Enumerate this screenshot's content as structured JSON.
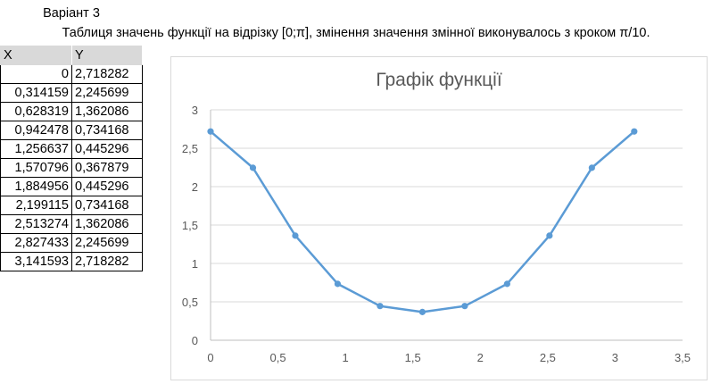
{
  "sheet": {
    "variant": "Варіант 3",
    "description": "Таблиця значень функції на відрізку [0;π], змінення значення змінної виконувалось з  кроком π/10.",
    "columns": [
      "X",
      "Y"
    ],
    "rows": [
      [
        "0",
        "2,718282"
      ],
      [
        "0,314159",
        "2,245699"
      ],
      [
        "0,628319",
        "1,362086"
      ],
      [
        "0,942478",
        "0,734168"
      ],
      [
        "1,256637",
        "0,445296"
      ],
      [
        "1,570796",
        "0,367879"
      ],
      [
        "1,884956",
        "0,445296"
      ],
      [
        "2,199115",
        "0,734168"
      ],
      [
        "2,513274",
        "1,362086"
      ],
      [
        "2,827433",
        "2,245699"
      ],
      [
        "3,141593",
        "2,718282"
      ]
    ]
  },
  "chart_data": {
    "type": "scatter",
    "title": "Графік функції",
    "xlabel": "",
    "ylabel": "",
    "xlim": [
      0,
      3.5
    ],
    "ylim": [
      0,
      3
    ],
    "x_ticks": [
      "0",
      "0,5",
      "1",
      "1,5",
      "2",
      "2,5",
      "3",
      "3,5"
    ],
    "y_ticks": [
      "0",
      "0,5",
      "1",
      "1,5",
      "2",
      "2,5",
      "3"
    ],
    "grid": true,
    "line_color": "#5b9bd5",
    "series": [
      {
        "x": [
          0,
          0.314159,
          0.628319,
          0.942478,
          1.256637,
          1.570796,
          1.884956,
          2.199115,
          2.513274,
          2.827433,
          3.141593
        ],
        "y": [
          2.718282,
          2.245699,
          1.362086,
          0.734168,
          0.445296,
          0.367879,
          0.445296,
          0.734168,
          1.362086,
          2.245699,
          2.718282
        ]
      }
    ]
  }
}
